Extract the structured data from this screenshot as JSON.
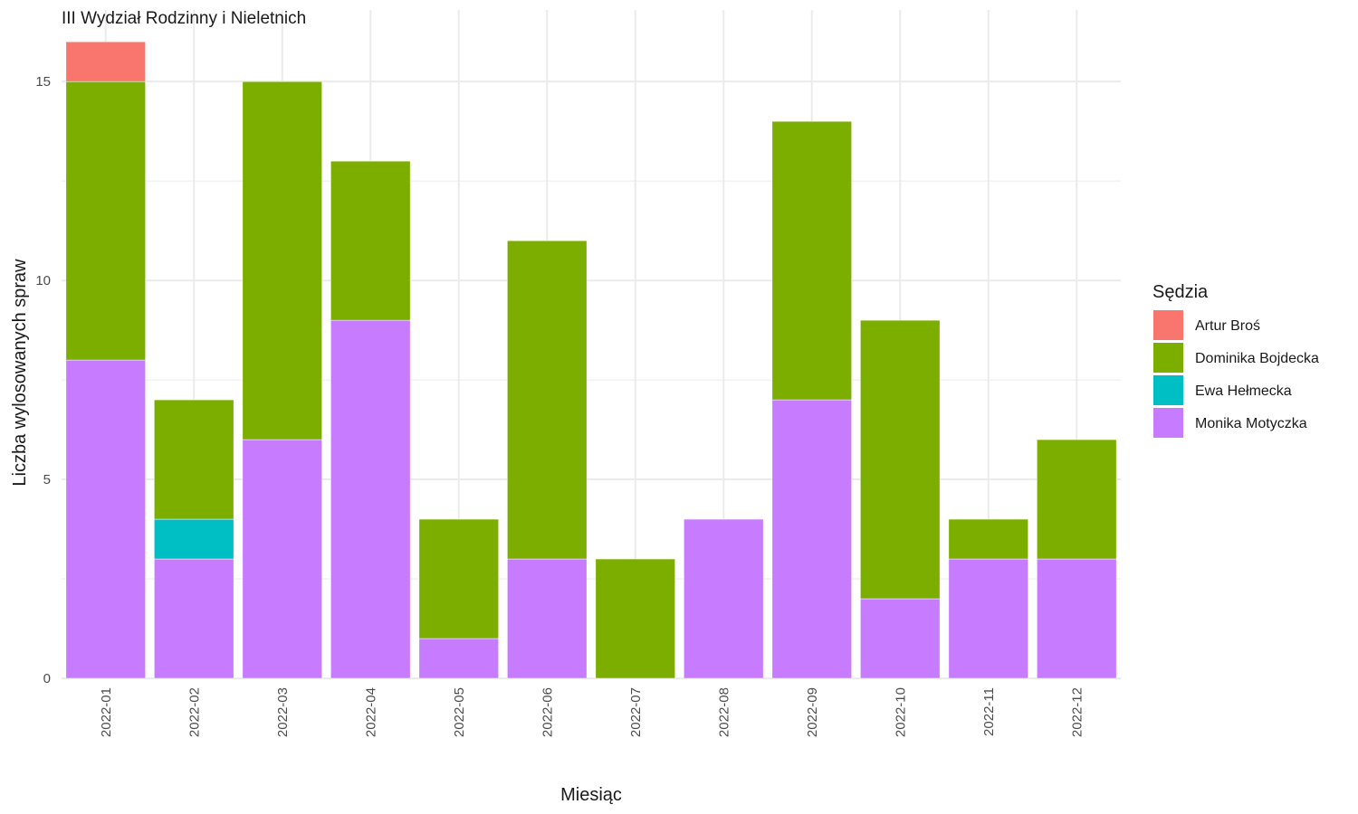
{
  "chart_data": {
    "type": "bar",
    "stacked": true,
    "title": "III Wydział Rodzinny i Nieletnich",
    "xlabel": "Miesiąc",
    "ylabel": "Liczba wylosowanych spraw",
    "ylim": [
      0,
      16.8
    ],
    "yticks": [
      0,
      5,
      10,
      15
    ],
    "grid": true,
    "legend": {
      "title": "Sędzia",
      "position": "right"
    },
    "categories": [
      "2022-01",
      "2022-02",
      "2022-03",
      "2022-04",
      "2022-05",
      "2022-06",
      "2022-07",
      "2022-08",
      "2022-09",
      "2022-10",
      "2022-11",
      "2022-12"
    ],
    "series": [
      {
        "name": "Monika Motyczka",
        "color": "#C77CFF",
        "values": [
          8,
          3,
          6,
          9,
          1,
          3,
          0,
          4,
          7,
          2,
          3,
          3
        ]
      },
      {
        "name": "Ewa Hełmecka",
        "color": "#00BFC4",
        "values": [
          0,
          1,
          0,
          0,
          0,
          0,
          0,
          0,
          0,
          0,
          0,
          0
        ]
      },
      {
        "name": "Dominika Bojdecka",
        "color": "#7CAE00",
        "values": [
          7,
          3,
          9,
          4,
          3,
          8,
          3,
          0,
          7,
          7,
          1,
          3
        ]
      },
      {
        "name": "Artur Broś",
        "color": "#F8766D",
        "values": [
          1,
          0,
          0,
          0,
          0,
          0,
          0,
          0,
          0,
          0,
          0,
          0
        ]
      }
    ],
    "legend_order": [
      "Artur Broś",
      "Dominika Bojdecka",
      "Ewa Hełmecka",
      "Monika Motyczka"
    ]
  }
}
